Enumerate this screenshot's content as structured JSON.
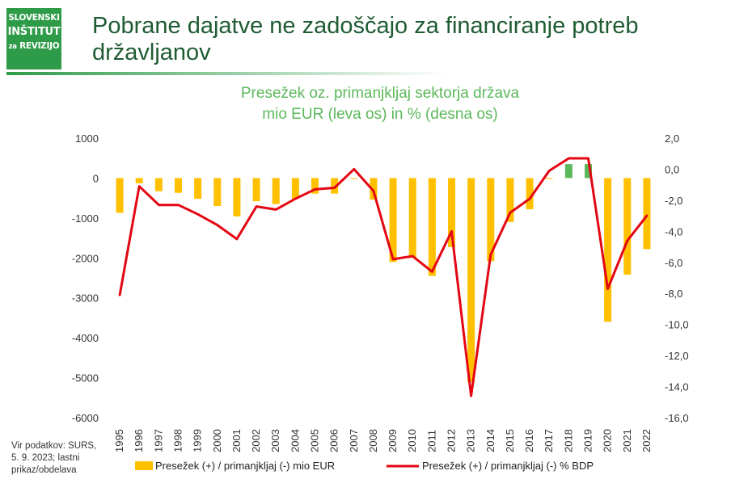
{
  "header": {
    "logo": {
      "line1": "SLOVENSKI",
      "line2": "INŠTITUT",
      "line3a": "za",
      "line3b": "REVIZIJO"
    },
    "title": "Pobrane dajatve ne zadoščajo za financiranje potreb državljanov"
  },
  "source_note": "Vir podatkov: SURS, 5. 9. 2023; lastni prikaz/obdelava",
  "chart_data": {
    "type": "bar+line",
    "title_line1": "Presežek oz. primanjkljaj sektorja država",
    "title_line2": "mio EUR (leva os) in % (desna os)",
    "categories": [
      "1995",
      "1996",
      "1997",
      "1998",
      "1999",
      "2000",
      "2001",
      "2002",
      "2003",
      "2004",
      "2005",
      "2006",
      "2007",
      "2008",
      "2009",
      "2010",
      "2011",
      "2012",
      "2013",
      "2014",
      "2015",
      "2016",
      "2017",
      "2018",
      "2019",
      "2020",
      "2021",
      "2022"
    ],
    "left_axis": {
      "min": -6000,
      "max": 1000,
      "ticks": [
        "1000",
        "0",
        "-1000",
        "-2000",
        "-3000",
        "-4000",
        "-5000",
        "-6000"
      ]
    },
    "right_axis": {
      "min": -16,
      "max": 2,
      "ticks": [
        "2,0",
        "0,0",
        "-2,0",
        "-4,0",
        "-6,0",
        "-8,0",
        "-10,0",
        "-12,0",
        "-14,0",
        "-16,0"
      ]
    },
    "series": [
      {
        "name": "Presežek (+) / primanjkljaj (-) mio EUR",
        "kind": "bar",
        "axis": "left",
        "color_negative": "#ffc000",
        "color_positive": "#5cb85c",
        "values": [
          -870,
          -130,
          -330,
          -370,
          -520,
          -700,
          -960,
          -580,
          -650,
          -520,
          -390,
          -390,
          -20,
          -540,
          -2100,
          -2000,
          -2450,
          -1730,
          -5110,
          -2080,
          -1100,
          -780,
          -20,
          350,
          350,
          -3600,
          -2420,
          -1780
        ]
      },
      {
        "name": "Presežek (+) / primanjkljaj (-) % BDP",
        "kind": "line",
        "axis": "right",
        "color": "#e30613",
        "values": [
          -8.1,
          -1.1,
          -2.3,
          -2.3,
          -2.9,
          -3.6,
          -4.5,
          -2.4,
          -2.6,
          -1.9,
          -1.3,
          -1.2,
          0.0,
          -1.4,
          -5.8,
          -5.6,
          -6.6,
          -4.0,
          -14.6,
          -5.5,
          -2.8,
          -1.9,
          -0.1,
          0.7,
          0.7,
          -7.7,
          -4.6,
          -3.0
        ]
      }
    ],
    "legend_position": "bottom",
    "grid": false
  }
}
